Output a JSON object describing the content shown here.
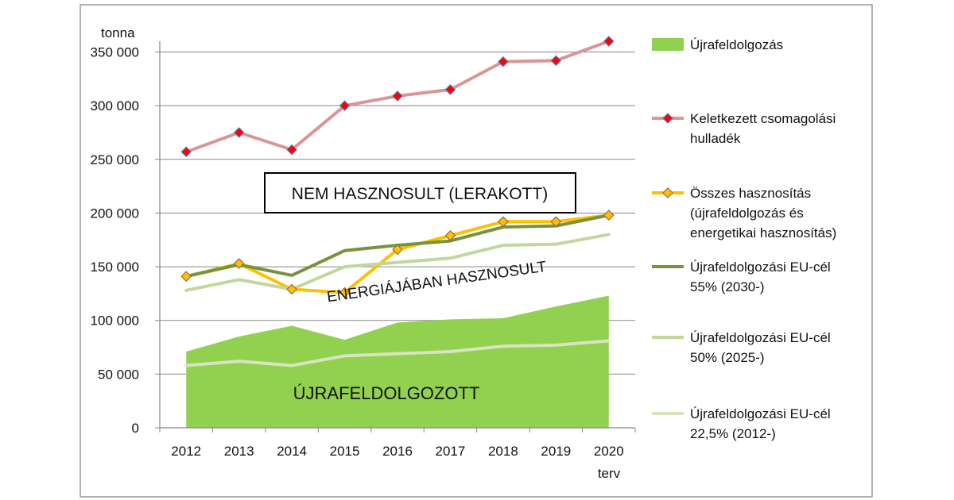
{
  "chart_data": {
    "type": "line",
    "unit_label": "tonna",
    "categories": [
      "2012",
      "2013",
      "2014",
      "2015",
      "2016",
      "2017",
      "2018",
      "2019",
      "2020"
    ],
    "last_category_note": "terv",
    "y_ticks": [
      "350 000",
      "300 000",
      "250 000",
      "200 000",
      "150 000",
      "100 000",
      "50 000",
      "0"
    ],
    "ylim": [
      0,
      350000
    ],
    "grid": true,
    "legend_position": "right",
    "series": [
      {
        "name": "Újrafeldolgozás",
        "kind": "area",
        "color": "#92d050",
        "values": [
          71000,
          85000,
          95000,
          82000,
          98000,
          101000,
          102000,
          113000,
          123000
        ]
      },
      {
        "name": "Keletkezett csomagolási hulladék",
        "kind": "line-marker",
        "color": "#d99694",
        "marker_color": "#ff0000",
        "values": [
          257000,
          275000,
          259000,
          300000,
          309000,
          315000,
          341000,
          342000,
          360000
        ]
      },
      {
        "name": "Összes hasznosítás (újrafeldolgozás és energetikai hasznosítás)",
        "kind": "line-marker",
        "color": "#ffc000",
        "marker_color": "#ffc000",
        "values": [
          141000,
          153000,
          129000,
          126000,
          166000,
          179000,
          192000,
          192000,
          198000
        ]
      },
      {
        "name": "Újrafeldolgozási EU-cél 55% (2030-)",
        "kind": "line",
        "color": "#77933c",
        "values": [
          141000,
          152000,
          142000,
          165000,
          170000,
          174000,
          187000,
          188000,
          198000
        ]
      },
      {
        "name": "Újrafeldolgozási EU-cél 50% (2025-)",
        "kind": "line",
        "color": "#c3d69b",
        "values": [
          128000,
          138000,
          129000,
          150000,
          154000,
          158000,
          170000,
          171000,
          180000
        ]
      },
      {
        "name": "Újrafeldolgozási EU-cél 22,5% (2012-)",
        "kind": "line",
        "color": "#d7e4bd",
        "values": [
          58000,
          62000,
          58000,
          67000,
          69000,
          71000,
          76000,
          77000,
          81000
        ]
      }
    ],
    "legend": [
      {
        "lines": [
          "Újrafeldolgozás"
        ]
      },
      {
        "lines": [
          "Keletkezett csomagolási",
          "hulladék"
        ]
      },
      {
        "lines": [
          "Összes hasznosítás",
          "(újrafeldolgozás és",
          "energetikai hasznosítás)"
        ]
      },
      {
        "lines": [
          "Újrafeldolgozási EU-cél",
          "55% (2030-)"
        ]
      },
      {
        "lines": [
          "Újrafeldolgozási EU-cél",
          "50% (2025-)"
        ]
      },
      {
        "lines": [
          "Újrafeldolgozási EU-cél",
          "22,5% (2012-)"
        ]
      }
    ],
    "annotations": {
      "unused_box": "NEM HASZNOSULT (LERAKOTT)",
      "energy": "ENERGIÁJÁBAN HASZNOSULT",
      "recycled": "ÚJRAFELDOLGOZOTT"
    }
  }
}
